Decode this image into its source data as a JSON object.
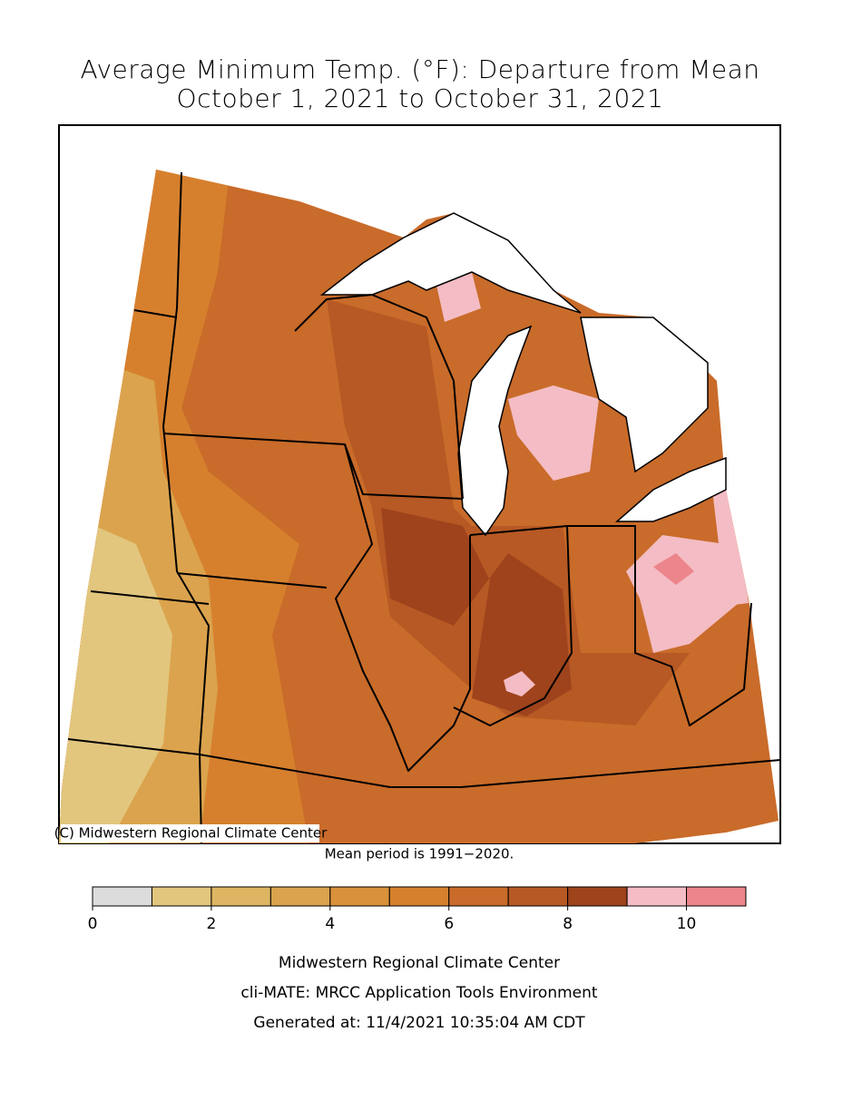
{
  "title": [
    "Average Minimum Temp. (°F): Departure from Mean",
    "October 1, 2021 to October 31, 2021"
  ],
  "map": {
    "credit": "(C) Midwestern Regional Climate Center"
  },
  "note": "Mean period is 1991−2020.",
  "legend": {
    "bins": [
      0,
      1,
      2,
      3,
      4,
      5,
      6,
      7,
      8,
      9,
      10,
      11
    ],
    "colors": [
      "#dcdcdc",
      "#e2c67e",
      "#deb562",
      "#dba34d",
      "#d9913c",
      "#d6802e",
      "#c96b2a",
      "#b75924",
      "#9e431c",
      "#f4bcc4",
      "#ec858c"
    ],
    "ticks": [
      0,
      2,
      4,
      6,
      8,
      10
    ]
  },
  "footer": [
    "Midwestern Regional Climate Center",
    "cli-MATE: MRCC Application Tools Environment",
    "Generated at: 11/4/2021 10:35:04 AM CDT"
  ]
}
